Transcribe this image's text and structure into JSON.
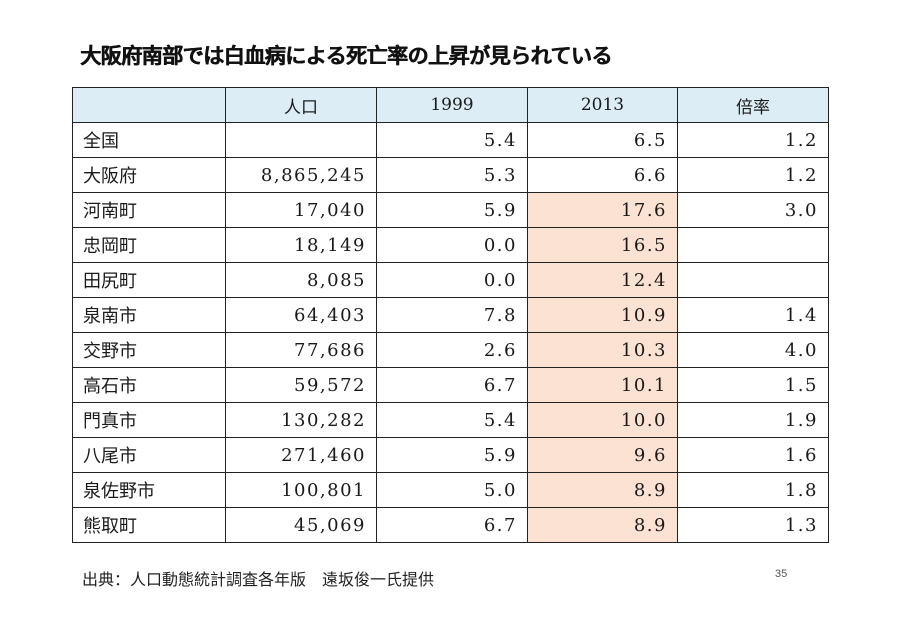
{
  "title": "大阪府南部では白血病による死亡率の上昇が見られている",
  "table": {
    "headers": [
      "",
      "人口",
      "1999",
      "2013",
      "倍率"
    ],
    "rows": [
      {
        "name": "全国",
        "population": "",
        "y1999": "5.4",
        "y2013": "6.5",
        "ratio": "1.2",
        "highlight": false
      },
      {
        "name": "大阪府",
        "population": "8,865,245",
        "y1999": "5.3",
        "y2013": "6.6",
        "ratio": "1.2",
        "highlight": false
      },
      {
        "name": "河南町",
        "population": "17,040",
        "y1999": "5.9",
        "y2013": "17.6",
        "ratio": "3.0",
        "highlight": true
      },
      {
        "name": "忠岡町",
        "population": "18,149",
        "y1999": "0.0",
        "y2013": "16.5",
        "ratio": "",
        "highlight": true
      },
      {
        "name": "田尻町",
        "population": "8,085",
        "y1999": "0.0",
        "y2013": "12.4",
        "ratio": "",
        "highlight": true
      },
      {
        "name": "泉南市",
        "population": "64,403",
        "y1999": "7.8",
        "y2013": "10.9",
        "ratio": "1.4",
        "highlight": true
      },
      {
        "name": "交野市",
        "population": "77,686",
        "y1999": "2.6",
        "y2013": "10.3",
        "ratio": "4.0",
        "highlight": true
      },
      {
        "name": "高石市",
        "population": "59,572",
        "y1999": "6.7",
        "y2013": "10.1",
        "ratio": "1.5",
        "highlight": true
      },
      {
        "name": "門真市",
        "population": "130,282",
        "y1999": "5.4",
        "y2013": "10.0",
        "ratio": "1.9",
        "highlight": true
      },
      {
        "name": "八尾市",
        "population": "271,460",
        "y1999": "5.9",
        "y2013": "9.6",
        "ratio": "1.6",
        "highlight": true
      },
      {
        "name": "泉佐野市",
        "population": "100,801",
        "y1999": "5.0",
        "y2013": "8.9",
        "ratio": "1.8",
        "highlight": true
      },
      {
        "name": "熊取町",
        "population": "45,069",
        "y1999": "6.7",
        "y2013": "8.9",
        "ratio": "1.3",
        "highlight": true
      }
    ]
  },
  "source": "出典：人口動態統計調査各年版　遠坂俊一氏提供",
  "page_number": "35",
  "colors": {
    "header_bg": "#dcedf5",
    "highlight_bg": "#fbe2d2"
  }
}
